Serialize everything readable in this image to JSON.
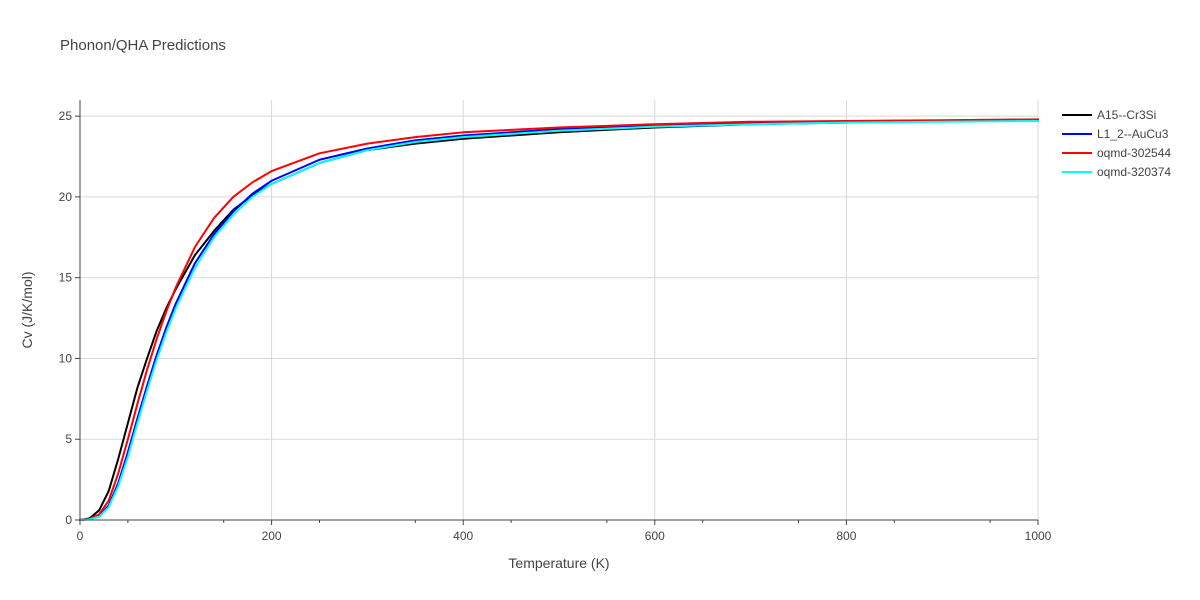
{
  "chart_data": {
    "type": "line",
    "title": "Phonon/QHA Predictions",
    "xlabel": "Temperature (K)",
    "ylabel": "Cv (J/K/mol)",
    "xlim": [
      0,
      1000
    ],
    "ylim": [
      0,
      26
    ],
    "xticks": [
      0,
      200,
      400,
      600,
      800,
      1000
    ],
    "yticks": [
      0,
      5,
      10,
      15,
      20,
      25
    ],
    "grid": true,
    "legend_position": "top-right",
    "x": [
      0,
      10,
      20,
      30,
      40,
      50,
      60,
      70,
      80,
      90,
      100,
      120,
      140,
      160,
      180,
      200,
      250,
      300,
      350,
      400,
      500,
      600,
      700,
      800,
      900,
      1000
    ],
    "series": [
      {
        "name": "A15--Cr3Si",
        "color": "#000000",
        "values": [
          0,
          0.1,
          0.6,
          1.8,
          3.8,
          6.0,
          8.2,
          10.0,
          11.7,
          13.1,
          14.3,
          16.4,
          17.9,
          19.2,
          20.1,
          20.8,
          22.1,
          22.9,
          23.3,
          23.6,
          24.0,
          24.3,
          24.5,
          24.6,
          24.7,
          24.75
        ]
      },
      {
        "name": "L1_2--AuCu3",
        "color": "#0000ff",
        "values": [
          0,
          0.05,
          0.25,
          0.9,
          2.3,
          4.2,
          6.3,
          8.3,
          10.2,
          11.9,
          13.4,
          15.9,
          17.7,
          19.1,
          20.2,
          21.0,
          22.3,
          23.0,
          23.5,
          23.8,
          24.2,
          24.4,
          24.6,
          24.65,
          24.7,
          24.75
        ]
      },
      {
        "name": "oqmd-302544",
        "color": "#ff0000",
        "values": [
          0,
          0.05,
          0.35,
          1.2,
          2.9,
          5.0,
          7.2,
          9.3,
          11.2,
          12.9,
          14.4,
          16.9,
          18.7,
          20.0,
          20.9,
          21.6,
          22.7,
          23.3,
          23.7,
          24.0,
          24.3,
          24.5,
          24.65,
          24.7,
          24.75,
          24.8
        ]
      },
      {
        "name": "oqmd-320374",
        "color": "#00ffff",
        "values": [
          0,
          0.04,
          0.2,
          0.8,
          2.1,
          3.9,
          6.0,
          8.0,
          9.9,
          11.6,
          13.1,
          15.6,
          17.5,
          18.9,
          20.0,
          20.8,
          22.1,
          22.9,
          23.4,
          23.7,
          24.1,
          24.35,
          24.5,
          24.6,
          24.65,
          24.7
        ]
      }
    ]
  }
}
